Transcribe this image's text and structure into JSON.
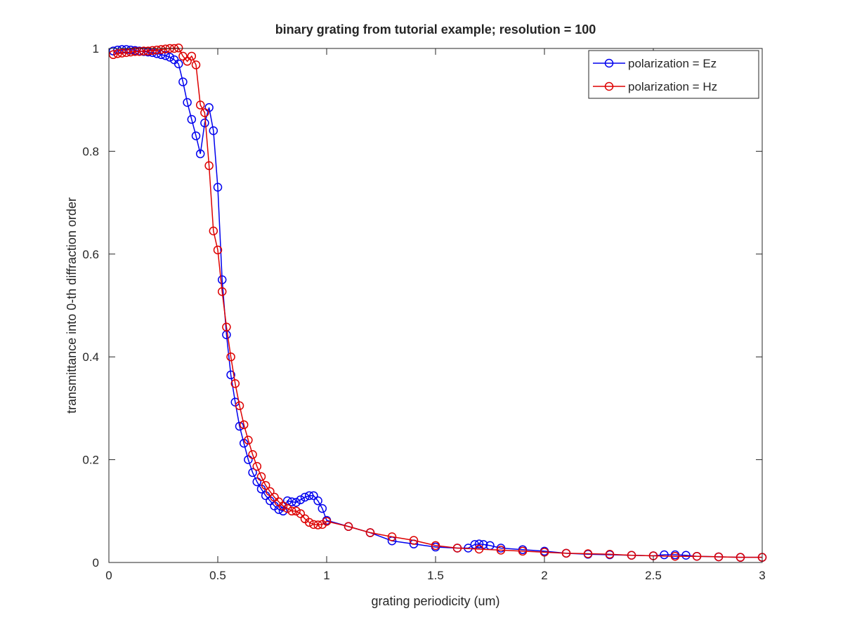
{
  "chart_data": {
    "type": "line",
    "title": "binary grating from tutorial example; resolution = 100",
    "xlabel": "grating periodicity (um)",
    "ylabel": "transmittance into 0-th diffraction order",
    "xlim": [
      0,
      3
    ],
    "ylim": [
      0,
      1
    ],
    "xticks": [
      "0",
      "0.5",
      "1",
      "1.5",
      "2",
      "2.5",
      "3"
    ],
    "yticks": [
      "0",
      "0.2",
      "0.4",
      "0.6",
      "0.8",
      "1"
    ],
    "grid": false,
    "legend_position": "top-right",
    "marker": "circle",
    "series": [
      {
        "name": "polarization = Ez",
        "color": "#0000ee",
        "x": [
          0.02,
          0.04,
          0.06,
          0.08,
          0.1,
          0.12,
          0.14,
          0.16,
          0.18,
          0.2,
          0.22,
          0.24,
          0.26,
          0.28,
          0.3,
          0.32,
          0.34,
          0.36,
          0.38,
          0.4,
          0.42,
          0.44,
          0.46,
          0.48,
          0.5,
          0.52,
          0.54,
          0.56,
          0.58,
          0.6,
          0.62,
          0.64,
          0.66,
          0.68,
          0.7,
          0.72,
          0.74,
          0.76,
          0.78,
          0.8,
          0.82,
          0.84,
          0.86,
          0.88,
          0.9,
          0.92,
          0.94,
          0.96,
          0.98,
          1.0,
          1.1,
          1.2,
          1.3,
          1.4,
          1.5,
          1.6,
          1.65,
          1.68,
          1.7,
          1.72,
          1.75,
          1.8,
          1.9,
          2.0,
          2.1,
          2.2,
          2.3,
          2.4,
          2.5,
          2.55,
          2.6,
          2.65,
          2.7,
          2.8,
          2.9,
          3.0
        ],
        "y": [
          0.995,
          0.997,
          0.998,
          0.998,
          0.997,
          0.996,
          0.995,
          0.994,
          0.993,
          0.992,
          0.99,
          0.988,
          0.986,
          0.983,
          0.978,
          0.97,
          0.935,
          0.895,
          0.862,
          0.83,
          0.795,
          0.855,
          0.885,
          0.84,
          0.73,
          0.55,
          0.443,
          0.365,
          0.312,
          0.265,
          0.232,
          0.2,
          0.175,
          0.157,
          0.143,
          0.13,
          0.12,
          0.11,
          0.103,
          0.1,
          0.12,
          0.118,
          0.117,
          0.122,
          0.127,
          0.13,
          0.13,
          0.12,
          0.105,
          0.082,
          0.07,
          0.058,
          0.042,
          0.036,
          0.03,
          0.028,
          0.028,
          0.035,
          0.036,
          0.035,
          0.033,
          0.028,
          0.025,
          0.022,
          0.018,
          0.016,
          0.015,
          0.014,
          0.013,
          0.015,
          0.015,
          0.014,
          0.012,
          0.011,
          0.01,
          0.01
        ]
      },
      {
        "name": "polarization = Hz",
        "color": "#dd0000",
        "x": [
          0.02,
          0.04,
          0.06,
          0.08,
          0.1,
          0.12,
          0.14,
          0.16,
          0.18,
          0.2,
          0.22,
          0.24,
          0.26,
          0.28,
          0.3,
          0.32,
          0.34,
          0.36,
          0.38,
          0.4,
          0.42,
          0.44,
          0.46,
          0.48,
          0.5,
          0.52,
          0.54,
          0.56,
          0.58,
          0.6,
          0.62,
          0.64,
          0.66,
          0.68,
          0.7,
          0.72,
          0.74,
          0.76,
          0.78,
          0.8,
          0.82,
          0.84,
          0.86,
          0.88,
          0.9,
          0.92,
          0.94,
          0.96,
          0.98,
          1.0,
          1.1,
          1.2,
          1.3,
          1.4,
          1.5,
          1.6,
          1.7,
          1.8,
          1.9,
          2.0,
          2.1,
          2.2,
          2.3,
          2.4,
          2.5,
          2.6,
          2.7,
          2.8,
          2.9,
          3.0
        ],
        "y": [
          0.988,
          0.99,
          0.991,
          0.992,
          0.993,
          0.994,
          0.994,
          0.995,
          0.995,
          0.996,
          0.997,
          0.998,
          0.999,
          1.0,
          1.0,
          1.001,
          0.985,
          0.975,
          0.985,
          0.968,
          0.89,
          0.875,
          0.772,
          0.645,
          0.608,
          0.527,
          0.458,
          0.4,
          0.348,
          0.305,
          0.268,
          0.238,
          0.21,
          0.187,
          0.167,
          0.15,
          0.138,
          0.127,
          0.118,
          0.11,
          0.105,
          0.1,
          0.1,
          0.095,
          0.085,
          0.078,
          0.074,
          0.073,
          0.074,
          0.08,
          0.07,
          0.058,
          0.05,
          0.043,
          0.033,
          0.028,
          0.026,
          0.024,
          0.022,
          0.02,
          0.018,
          0.017,
          0.016,
          0.014,
          0.013,
          0.012,
          0.012,
          0.011,
          0.01,
          0.01
        ]
      }
    ]
  }
}
